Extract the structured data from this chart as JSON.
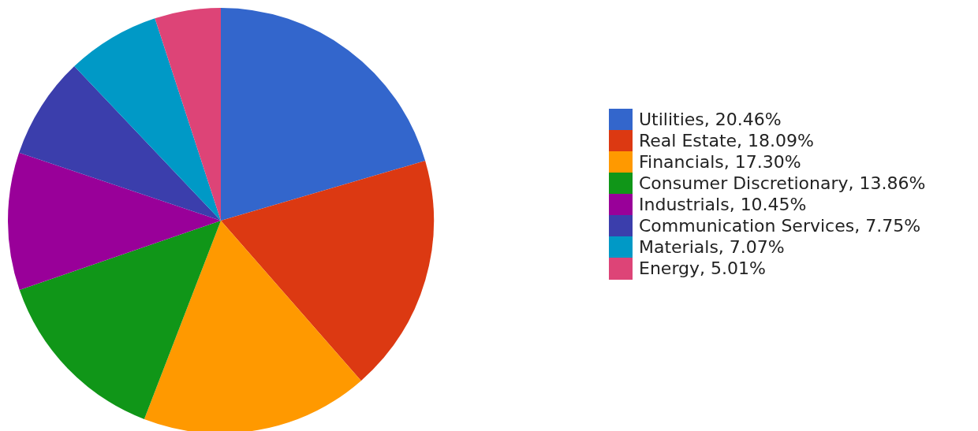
{
  "chart_data": {
    "type": "pie",
    "categories": [
      "Utilities, 20.46%",
      "Real Estate, 18.09%",
      "Financials, 17.30%",
      "Consumer Discretionary, 13.86%",
      "Industrials, 10.45%",
      "Communication Services, 7.75%",
      "Materials, 7.07%",
      "Energy, 5.01%"
    ],
    "values": [
      20.46,
      18.09,
      17.3,
      13.86,
      10.45,
      7.75,
      7.07,
      5.01
    ],
    "colors": [
      "#3366cc",
      "#dc3912",
      "#ff9900",
      "#109618",
      "#990099",
      "#3b3eac",
      "#0099c6",
      "#dd4477"
    ],
    "legend": "right"
  }
}
